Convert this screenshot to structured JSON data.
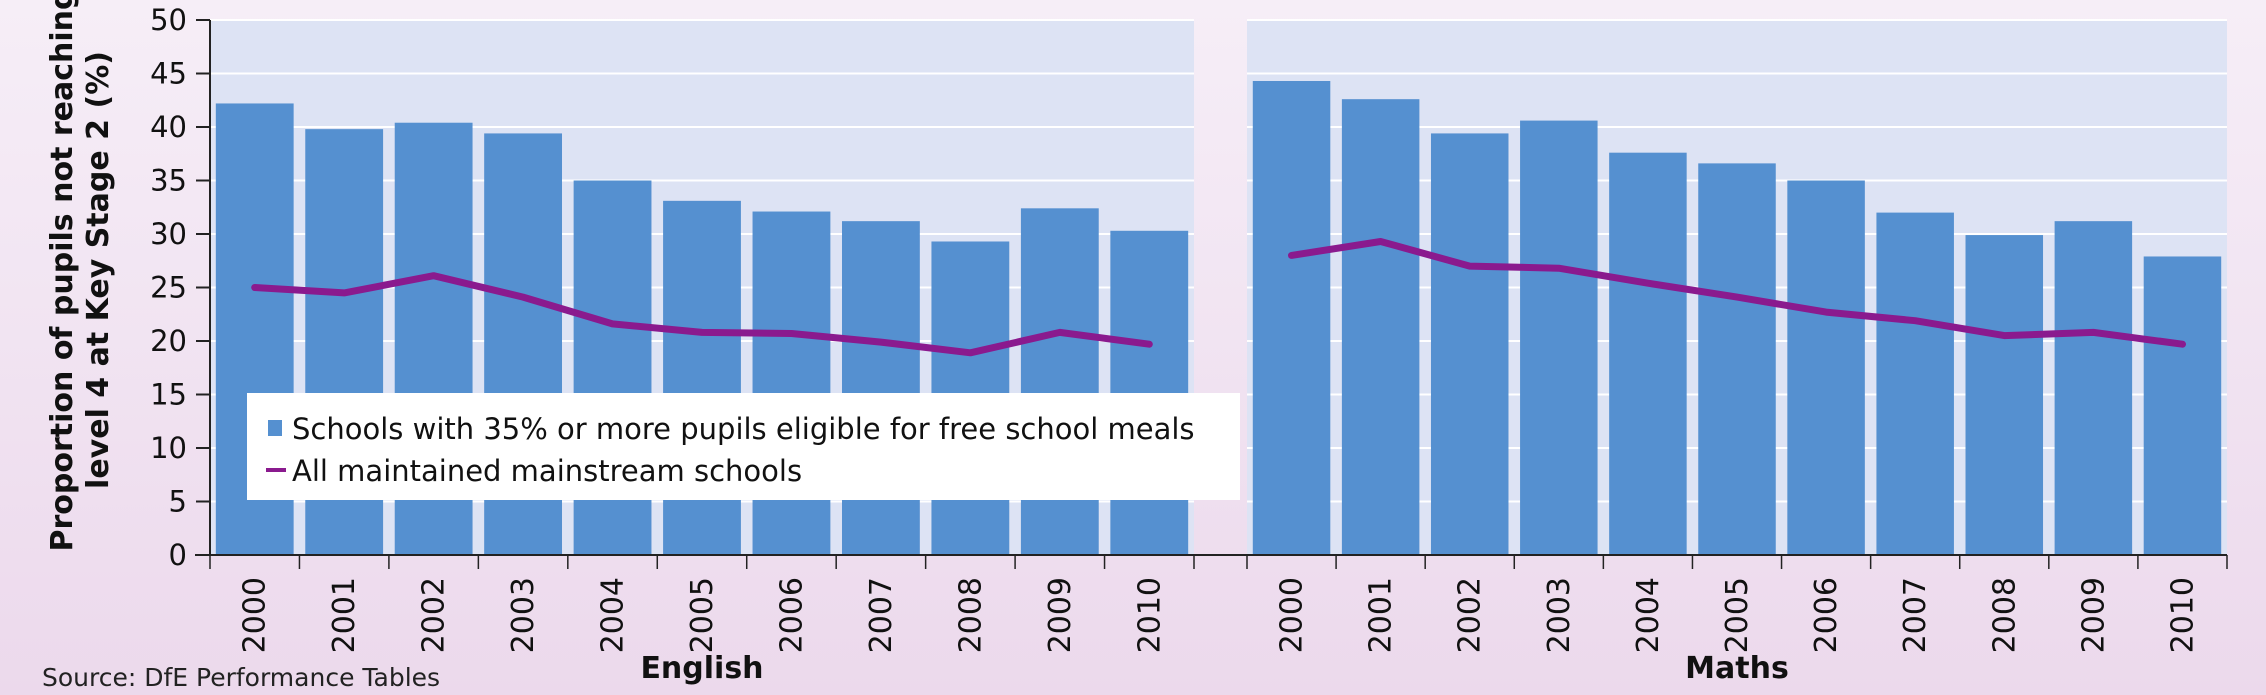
{
  "chart_data": {
    "type": "bar",
    "ylabel_lines": [
      "Proportion of pupils not reaching",
      "level 4 at Key Stage 2 (%)"
    ],
    "ylim": [
      0,
      50
    ],
    "yticks": [
      0,
      5,
      10,
      15,
      20,
      25,
      30,
      35,
      40,
      45,
      50
    ],
    "grid": true,
    "legend_position": "lower-left",
    "legend": {
      "bar_label": "Schools with 35% or more pupils eligible for free school meals",
      "line_label": "All maintained mainstream schools"
    },
    "colors": {
      "bar": "#5590d0",
      "line": "#8a1a8e",
      "panel": "#dde3f4",
      "grid": "#ffffff",
      "axis": "#222222"
    },
    "panels": [
      {
        "xlabel": "English",
        "categories": [
          "2000",
          "2001",
          "2002",
          "2003",
          "2004",
          "2005",
          "2006",
          "2007",
          "2008",
          "2009",
          "2010"
        ],
        "series": [
          {
            "name": "Schools with 35% or more pupils eligible for free school meals",
            "kind": "bar",
            "values": [
              42.2,
              39.8,
              40.4,
              39.4,
              35.0,
              33.1,
              32.1,
              31.2,
              29.3,
              32.4,
              30.3
            ]
          },
          {
            "name": "All maintained mainstream schools",
            "kind": "line",
            "values": [
              25.0,
              24.5,
              26.1,
              24.1,
              21.6,
              20.8,
              20.7,
              19.9,
              18.9,
              20.8,
              19.7
            ]
          }
        ]
      },
      {
        "xlabel": "Maths",
        "categories": [
          "2000",
          "2001",
          "2002",
          "2003",
          "2004",
          "2005",
          "2006",
          "2007",
          "2008",
          "2009",
          "2010"
        ],
        "series": [
          {
            "name": "Schools with 35% or more pupils eligible for free school meals",
            "kind": "bar",
            "values": [
              44.3,
              42.6,
              39.4,
              40.6,
              37.6,
              36.6,
              35.0,
              32.0,
              29.9,
              31.2,
              27.9
            ]
          },
          {
            "name": "All maintained mainstream schools",
            "kind": "line",
            "values": [
              28.0,
              29.3,
              27.0,
              26.8,
              25.4,
              24.1,
              22.7,
              21.9,
              20.5,
              20.8,
              19.7
            ]
          }
        ]
      }
    ],
    "source": "Source: DfE Performance Tables"
  }
}
